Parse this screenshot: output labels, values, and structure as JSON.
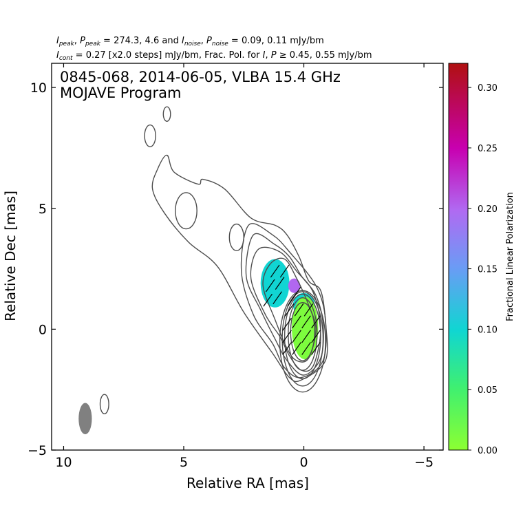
{
  "header": {
    "line1_parts": [
      {
        "t": "I",
        "it": true
      },
      {
        "t": "peak",
        "sub": true,
        "it": true
      },
      {
        "t": ", "
      },
      {
        "t": "P",
        "it": true
      },
      {
        "t": "peak",
        "sub": true,
        "it": true
      },
      {
        "t": " = 274.3, 4.6 and "
      },
      {
        "t": "I",
        "it": true
      },
      {
        "t": "noise",
        "sub": true,
        "it": true
      },
      {
        "t": ", "
      },
      {
        "t": "P",
        "it": true
      },
      {
        "t": "noise",
        "sub": true,
        "it": true
      },
      {
        "t": " = 0.09, 0.11 mJy/bm"
      }
    ],
    "line2_parts": [
      {
        "t": "I",
        "it": true
      },
      {
        "t": "cont",
        "sub": true,
        "it": true
      },
      {
        "t": " = 0.27 [x2.0 steps] mJy/bm, Frac. Pol. for "
      },
      {
        "t": "I",
        "it": true
      },
      {
        "t": ", "
      },
      {
        "t": "P",
        "it": true
      },
      {
        "t": " ≥ 0.45, 0.55 mJy/bm"
      }
    ]
  },
  "chart_data": {
    "type": "contour",
    "title_line1": "0845-068, 2014-06-05, VLBA 15.4 GHz",
    "title_line2": "MOJAVE Program",
    "xlabel": "Relative RA [mas]",
    "ylabel": "Relative Dec [mas]",
    "xlim": [
      10.5,
      -5.8
    ],
    "ylim": [
      -5,
      11
    ],
    "xticks": [
      10,
      5,
      0,
      -5
    ],
    "xtick_labels": [
      "10",
      "5",
      "0",
      "−5"
    ],
    "yticks": [
      -5,
      0,
      5,
      10
    ],
    "ytick_labels": [
      "−5",
      "0",
      "5",
      "10"
    ],
    "colorbar": {
      "label": "Fractional Linear Polarization",
      "range": [
        0.0,
        0.32
      ],
      "ticks": [
        0.0,
        0.05,
        0.1,
        0.15,
        0.2,
        0.25,
        0.3
      ],
      "tick_labels": [
        "0.00",
        "0.05",
        "0.10",
        "0.15",
        "0.20",
        "0.25",
        "0.30"
      ]
    },
    "core": {
      "ra": 0.0,
      "dec": 0.0
    },
    "contours_core": [
      {
        "ra_c": 0.05,
        "dec_c": -0.1,
        "ra_hw": 0.5,
        "dec_hw": 1.2
      },
      {
        "ra_c": 0.05,
        "dec_c": -0.2,
        "ra_hw": 0.6,
        "dec_hw": 1.5
      },
      {
        "ra_c": 0.05,
        "dec_c": -0.3,
        "ra_hw": 0.75,
        "dec_hw": 1.75
      },
      {
        "ra_c": 0.05,
        "dec_c": -0.4,
        "ra_hw": 0.85,
        "dec_hw": 1.95
      },
      {
        "ra_c": 0.05,
        "dec_c": -0.5,
        "ra_hw": 0.95,
        "dec_hw": 2.1
      }
    ],
    "contours_outer": [
      [
        [
          1.4,
          2.7
        ],
        [
          0.8,
          2.9
        ],
        [
          0.3,
          2.1
        ],
        [
          -0.2,
          1.0
        ],
        [
          -0.5,
          0.0
        ],
        [
          -0.2,
          -1.2
        ],
        [
          0.3,
          -1.3
        ],
        [
          0.7,
          -0.8
        ],
        [
          1.2,
          0.4
        ],
        [
          1.7,
          1.8
        ]
      ],
      [
        [
          1.9,
          3.3
        ],
        [
          1.0,
          3.2
        ],
        [
          0.3,
          2.4
        ],
        [
          -0.4,
          1.5
        ],
        [
          -0.7,
          0.0
        ],
        [
          -0.4,
          -1.5
        ],
        [
          0.1,
          -1.7
        ],
        [
          0.6,
          -1.1
        ],
        [
          1.0,
          -0.3
        ],
        [
          1.6,
          0.6
        ],
        [
          2.2,
          2.1
        ]
      ],
      [
        [
          2.1,
          3.9
        ],
        [
          1.2,
          3.5
        ],
        [
          0.6,
          3.0
        ],
        [
          0.1,
          2.2
        ],
        [
          -0.5,
          1.4
        ],
        [
          -0.8,
          0.2
        ],
        [
          -0.7,
          -1.2
        ],
        [
          0.0,
          -1.9
        ],
        [
          0.7,
          -1.3
        ],
        [
          1.2,
          -0.4
        ],
        [
          1.8,
          0.8
        ],
        [
          2.4,
          2.2
        ]
      ],
      [
        [
          2.3,
          4.3
        ],
        [
          1.3,
          3.9
        ],
        [
          0.6,
          3.2
        ],
        [
          -0.5,
          1.8
        ],
        [
          -0.9,
          0.4
        ],
        [
          -0.8,
          -1.3
        ],
        [
          0.1,
          -2.0
        ],
        [
          0.8,
          -1.6
        ],
        [
          1.3,
          -0.6
        ],
        [
          2.1,
          0.6
        ],
        [
          2.6,
          2.4
        ]
      ],
      [
        [
          6.1,
          6.6
        ],
        [
          5.7,
          7.2
        ],
        [
          5.4,
          6.5
        ],
        [
          4.4,
          6.0
        ],
        [
          4.2,
          6.2
        ],
        [
          3.3,
          5.8
        ],
        [
          2.2,
          4.6
        ],
        [
          1.2,
          4.3
        ],
        [
          0.7,
          3.9
        ],
        [
          0.2,
          3.0
        ],
        [
          -0.2,
          2.0
        ],
        [
          -0.7,
          1.6
        ],
        [
          -0.9,
          0.3
        ],
        [
          -0.9,
          -1.3
        ],
        [
          0.1,
          -2.1
        ],
        [
          0.6,
          -2.0
        ],
        [
          1.3,
          -1.0
        ],
        [
          2.5,
          0.7
        ],
        [
          3.6,
          2.6
        ],
        [
          4.8,
          3.6
        ],
        [
          5.8,
          4.8
        ],
        [
          6.3,
          5.8
        ]
      ]
    ],
    "contours_islands": [
      {
        "ra_c": 6.4,
        "dec_c": 8.0,
        "ra_hw": 0.23,
        "dec_hw": 0.45
      },
      {
        "ra_c": 5.7,
        "dec_c": 8.9,
        "ra_hw": 0.15,
        "dec_hw": 0.3
      },
      {
        "ra_c": 4.9,
        "dec_c": 4.9,
        "ra_hw": 0.45,
        "dec_hw": 0.75
      },
      {
        "ra_c": 2.8,
        "dec_c": 3.8,
        "ra_hw": 0.3,
        "dec_hw": 0.55
      },
      {
        "ra_c": 8.3,
        "dec_c": -3.1,
        "ra_hw": 0.18,
        "dec_hw": 0.4
      }
    ],
    "polarization_regions": [
      {
        "ra_c": 1.2,
        "dec_c": 1.9,
        "ra_hw": 0.6,
        "dec_hw": 1.0,
        "fpol": 0.1
      },
      {
        "ra_c": 0.4,
        "dec_c": 1.8,
        "ra_hw": 0.25,
        "dec_hw": 0.3,
        "fpol": 0.2
      },
      {
        "ra_c": 0.0,
        "dec_c": 1.0,
        "ra_hw": 0.45,
        "dec_hw": 0.5,
        "fpol": 0.1
      },
      {
        "ra_c": -0.05,
        "dec_c": 0.05,
        "ra_hw": 0.55,
        "dec_hw": 1.3,
        "fpol": 0.01
      }
    ],
    "evpa_vectors": [
      {
        "ra": 1.5,
        "dec": 1.2
      },
      {
        "ra": 1.1,
        "dec": 1.3
      },
      {
        "ra": 1.4,
        "dec": 1.8
      },
      {
        "ra": 1.0,
        "dec": 1.9
      },
      {
        "ra": 1.2,
        "dec": 2.4
      },
      {
        "ra": 0.8,
        "dec": 2.4
      },
      {
        "ra": 0.5,
        "dec": 1.2
      },
      {
        "ra": 0.3,
        "dec": 1.5
      },
      {
        "ra": 0.7,
        "dec": 0.2
      },
      {
        "ra": 0.3,
        "dec": 0.3
      },
      {
        "ra": -0.1,
        "dec": 0.3
      },
      {
        "ra": -0.5,
        "dec": 0.3
      },
      {
        "ra": 0.7,
        "dec": -0.3
      },
      {
        "ra": 0.3,
        "dec": -0.3
      },
      {
        "ra": -0.1,
        "dec": -0.3
      },
      {
        "ra": -0.5,
        "dec": -0.3
      },
      {
        "ra": 0.7,
        "dec": -0.8
      },
      {
        "ra": 0.3,
        "dec": -0.8
      },
      {
        "ra": -0.1,
        "dec": -0.8
      },
      {
        "ra": -0.5,
        "dec": -0.8
      },
      {
        "ra": 0.6,
        "dec": 0.8
      },
      {
        "ra": 0.2,
        "dec": 0.8
      },
      {
        "ra": -0.2,
        "dec": 0.8
      }
    ],
    "beam": {
      "ra": 9.1,
      "dec": -3.7,
      "major_mas": 1.3,
      "minor_mas": 0.55,
      "pa_deg": 0,
      "color": "#808080"
    },
    "colors": {
      "contour": "#4d4d4d",
      "vector": "#000000"
    }
  }
}
